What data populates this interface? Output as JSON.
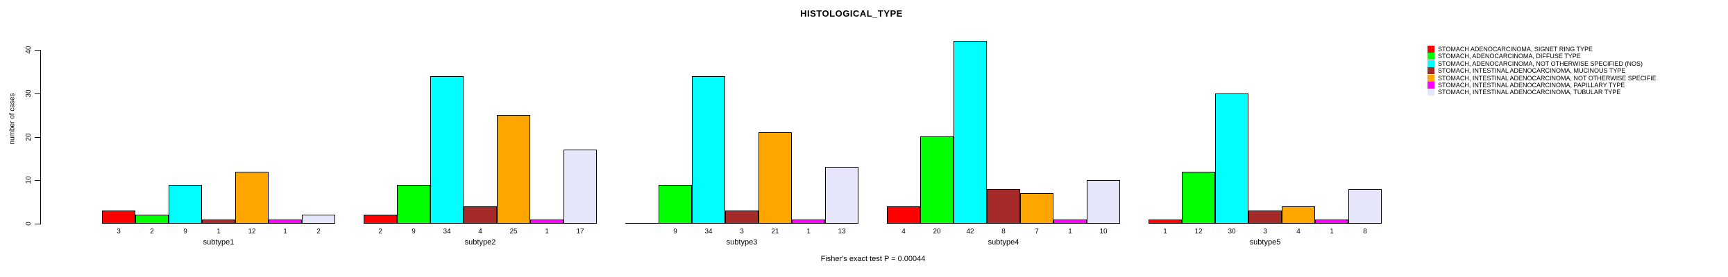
{
  "title": "HISTOLOGICAL_TYPE",
  "ylabel": "number of cases",
  "footer": "Fisher's exact test P = 0.00044",
  "chart_data": {
    "type": "bar",
    "title": "HISTOLOGICAL_TYPE",
    "xlabel": "",
    "ylabel": "number of cases",
    "ylim": [
      0,
      40
    ],
    "y_ticks": [
      0,
      10,
      20,
      30,
      40
    ],
    "grid": false,
    "legend_position": "right",
    "bar_value_labels_shown": true,
    "annotation": "Fisher's exact test P = 0.00044",
    "categories": [
      "subtype1",
      "subtype2",
      "subtype3",
      "subtype4",
      "subtype5"
    ],
    "series": [
      {
        "name": "STOMACH ADENOCARCINOMA, SIGNET RING TYPE",
        "color": "#FF0000",
        "values": [
          3,
          2,
          0,
          4,
          1
        ]
      },
      {
        "name": "STOMACH, ADENOCARCINOMA, DIFFUSE TYPE",
        "color": "#00FF00",
        "values": [
          2,
          9,
          9,
          20,
          12
        ]
      },
      {
        "name": "STOMACH, ADENOCARCINOMA, NOT OTHERWISE SPECIFIED (NOS)",
        "color": "#00FFFF",
        "values": [
          9,
          34,
          34,
          42,
          30
        ]
      },
      {
        "name": "STOMACH, INTESTINAL ADENOCARCINOMA, MUCINOUS TYPE",
        "color": "#A52A2A",
        "values": [
          1,
          4,
          3,
          8,
          3
        ]
      },
      {
        "name": "STOMACH, INTESTINAL ADENOCARCINOMA, NOT OTHERWISE SPECIFIE",
        "color": "#FFA500",
        "values": [
          12,
          25,
          21,
          7,
          4
        ]
      },
      {
        "name": "STOMACH, INTESTINAL ADENOCARCINOMA, PAPILLARY TYPE",
        "color": "#FF00FF",
        "values": [
          1,
          1,
          1,
          1,
          1
        ]
      },
      {
        "name": "STOMACH, INTESTINAL ADENOCARCINOMA, TUBULAR TYPE",
        "color": "#E6E6FA",
        "values": [
          2,
          17,
          13,
          10,
          8
        ]
      }
    ]
  }
}
